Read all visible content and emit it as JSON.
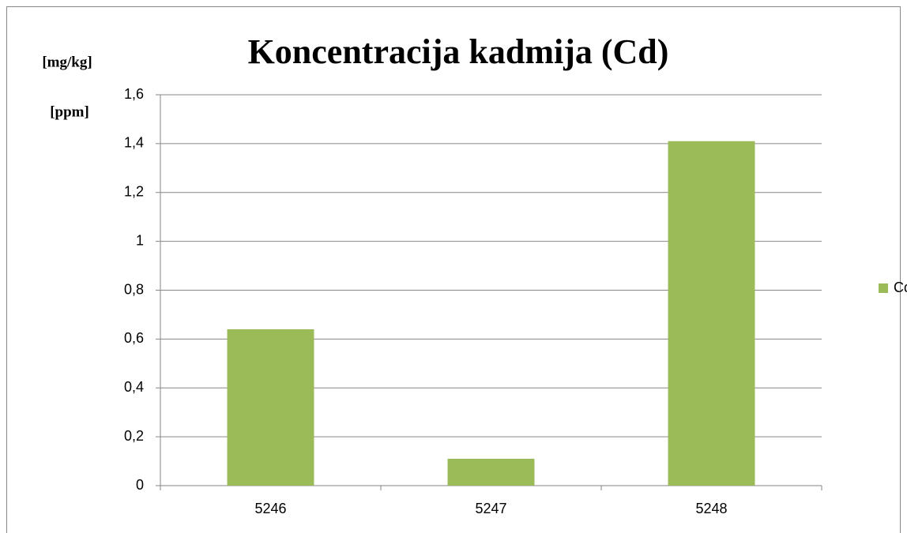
{
  "chart_data": {
    "type": "bar",
    "title": "Koncentracija kadmija (Cd)",
    "ylabel": [
      "[mg/kg]",
      "[ppm]"
    ],
    "categories": [
      "5246",
      "5247",
      "5248"
    ],
    "series": [
      {
        "name": "Cd",
        "color": "#9bbb59",
        "values": [
          0.64,
          0.11,
          1.41
        ]
      }
    ],
    "ylim": [
      0,
      1.6
    ],
    "yticks": [
      0,
      {
        "value": 0.2,
        "label": "0,2"
      },
      {
        "value": 0.4,
        "label": "0,4"
      },
      {
        "value": 0.6,
        "label": "0,6"
      },
      {
        "value": 0.8,
        "label": "0,8"
      },
      1,
      {
        "value": 1.2,
        "label": "1,2"
      },
      {
        "value": 1.4,
        "label": "1,4"
      },
      {
        "value": 1.6,
        "label": "1,6"
      }
    ],
    "grid": true,
    "legend": "right"
  }
}
